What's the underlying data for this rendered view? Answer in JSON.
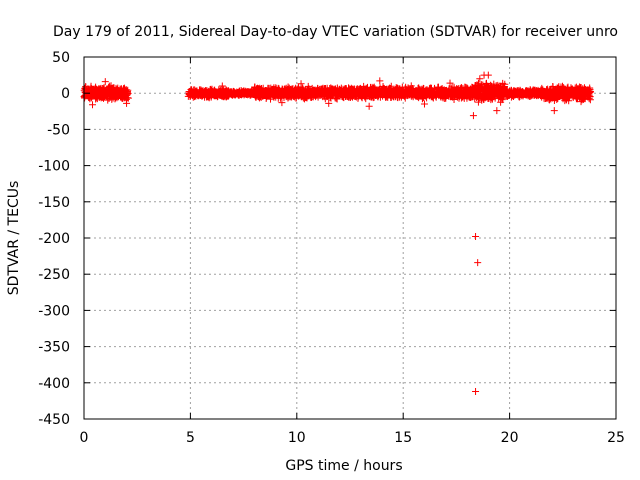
{
  "chart_data": {
    "type": "scatter",
    "title": "Day 179 of 2011, Sidereal Day-to-day VTEC variation (SDTVAR) for receiver unro",
    "xlabel": "GPS time / hours",
    "ylabel": "SDTVAR / TECUs",
    "xlim": [
      0,
      25
    ],
    "ylim": [
      -450,
      50
    ],
    "xticks": [
      0,
      5,
      10,
      15,
      20,
      25
    ],
    "yticks": [
      50,
      0,
      -50,
      -100,
      -150,
      -200,
      -250,
      -300,
      -350,
      -400,
      -450
    ],
    "grid": true,
    "legend": "none",
    "marker": "+",
    "series": [
      {
        "color": "#ff0000",
        "dense_segments": [
          {
            "x_range": [
              0.0,
              2.1
            ],
            "y_band": [
              -12,
              12
            ]
          },
          {
            "x_range": [
              4.9,
              6.8
            ],
            "y_band": [
              -8,
              7
            ]
          },
          {
            "x_range": [
              6.8,
              8.0
            ],
            "y_band": [
              -4,
              4
            ]
          },
          {
            "x_range": [
              8.0,
              12.0
            ],
            "y_band": [
              -9,
              10
            ]
          },
          {
            "x_range": [
              12.0,
              15.5
            ],
            "y_band": [
              -9,
              11
            ]
          },
          {
            "x_range": [
              15.5,
              18.2
            ],
            "y_band": [
              -10,
              11
            ]
          },
          {
            "x_range": [
              18.2,
              19.8
            ],
            "y_band": [
              -15,
              18
            ]
          },
          {
            "x_range": [
              19.8,
              21.5
            ],
            "y_band": [
              -6,
              6
            ]
          },
          {
            "x_range": [
              21.5,
              23.8
            ],
            "y_band": [
              -13,
              12
            ]
          }
        ],
        "points": [
          {
            "x": 1.0,
            "y": 16
          },
          {
            "x": 0.4,
            "y": -16
          },
          {
            "x": 2.0,
            "y": -14
          },
          {
            "x": 6.5,
            "y": 10
          },
          {
            "x": 9.3,
            "y": -13
          },
          {
            "x": 10.2,
            "y": 13
          },
          {
            "x": 11.5,
            "y": -14
          },
          {
            "x": 13.4,
            "y": -18
          },
          {
            "x": 13.9,
            "y": 17
          },
          {
            "x": 16.0,
            "y": -15
          },
          {
            "x": 17.2,
            "y": 14
          },
          {
            "x": 18.6,
            "y": 20
          },
          {
            "x": 18.8,
            "y": 25
          },
          {
            "x": 19.0,
            "y": 25
          },
          {
            "x": 19.4,
            "y": -24
          },
          {
            "x": 22.1,
            "y": -24
          },
          {
            "x": 18.3,
            "y": -31
          },
          {
            "x": 18.4,
            "y": -198
          },
          {
            "x": 18.5,
            "y": -234
          },
          {
            "x": 18.4,
            "y": -412
          }
        ]
      }
    ]
  }
}
